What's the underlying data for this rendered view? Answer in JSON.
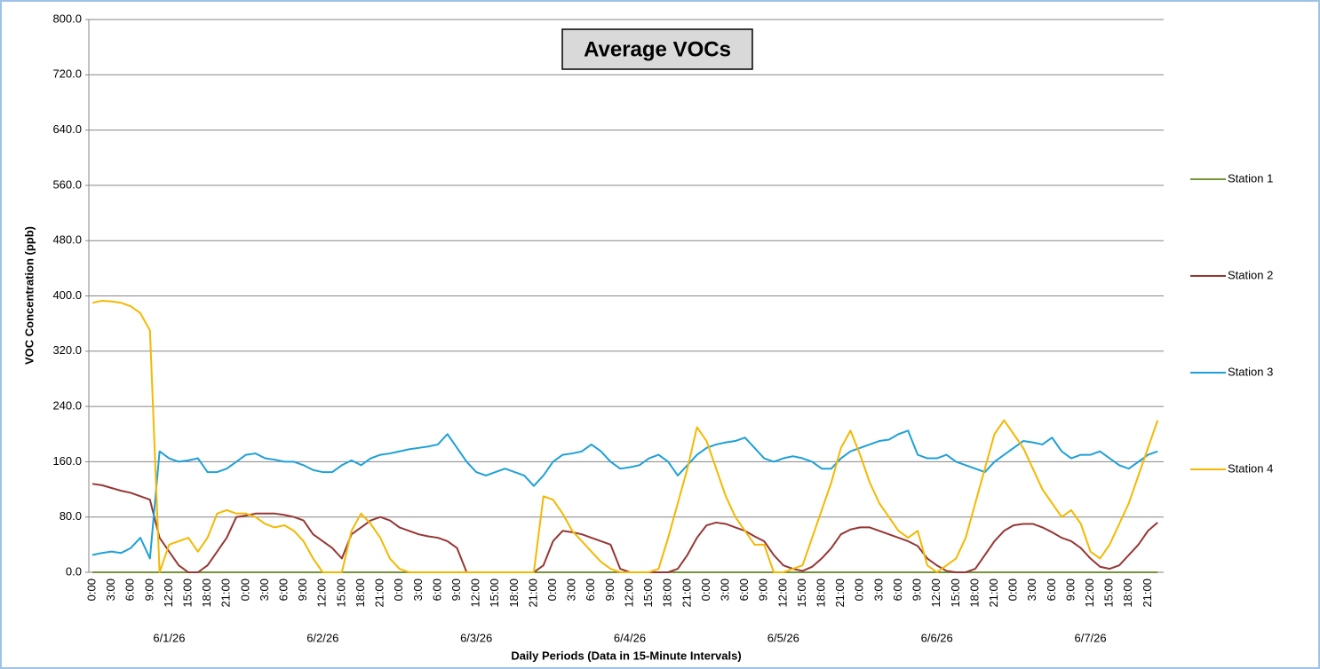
{
  "chart_data": {
    "type": "line",
    "title": "Average VOCs",
    "x_label": "Daily Periods (Data in 15-Minute Intervals)",
    "y_label": "VOC Concentration (ppb)",
    "categories": [
      "0:00",
      null,
      "3:00",
      null,
      "6:00",
      null,
      "9:00",
      null,
      "12:00",
      null,
      "15:00",
      null,
      "18:00",
      null,
      "21:00",
      null,
      "0:00",
      null,
      "3:00",
      null,
      "6:00",
      null,
      "9:00",
      null,
      "12:00",
      null,
      "15:00",
      null,
      "18:00",
      null,
      "21:00",
      null,
      "0:00",
      null,
      "3:00",
      null,
      "6:00",
      null,
      "9:00",
      null,
      "12:00",
      null,
      "15:00",
      null,
      "18:00",
      null,
      "21:00",
      null,
      "0:00",
      null,
      "3:00",
      null,
      "6:00",
      null,
      "9:00",
      null,
      "12:00",
      null,
      "15:00",
      null,
      "18:00",
      null,
      "21:00",
      null,
      "0:00",
      null,
      "3:00",
      null,
      "6:00",
      null,
      "9:00",
      null,
      "12:00",
      null,
      "15:00",
      null,
      "18:00",
      null,
      "21:00",
      null,
      "0:00",
      null,
      "3:00",
      null,
      "6:00",
      null,
      "9:00",
      null,
      "12:00",
      null,
      "15:00",
      null,
      "18:00",
      null,
      "21:00",
      null,
      "0:00",
      null,
      "3:00",
      null,
      "6:00",
      null,
      "9:00",
      null,
      "12:00",
      null,
      "15:00",
      null,
      "18:00",
      null,
      "21:00",
      null
    ],
    "dates": [
      "6/1/26",
      "6/2/26",
      "6/3/26",
      "6/4/26",
      "6/5/26",
      "6/6/26",
      "6/7/26"
    ],
    "ylim": [
      0,
      800
    ],
    "yticks": [
      {
        "value": 0,
        "label": "0.0"
      },
      {
        "value": 80,
        "label": "80.0"
      },
      {
        "value": 160,
        "label": "160.0"
      },
      {
        "value": 240,
        "label": "240.0"
      },
      {
        "value": 320,
        "label": "320.0"
      },
      {
        "value": 400,
        "label": "400.0"
      },
      {
        "value": 480,
        "label": "480.0"
      },
      {
        "value": 560,
        "label": "560.0"
      },
      {
        "value": 640,
        "label": "640.0"
      },
      {
        "value": 720,
        "label": "720.0"
      },
      {
        "value": 800,
        "label": "800.0"
      }
    ],
    "grid": true,
    "legend": "right",
    "series": [
      {
        "name": "Station 1",
        "color": "#77933c",
        "values": [
          0,
          0,
          0,
          0,
          0,
          0,
          0,
          0,
          0,
          0,
          0,
          0,
          0,
          0,
          0,
          0,
          0,
          0,
          0,
          0,
          0,
          0,
          0,
          0,
          0,
          0,
          0,
          0,
          0,
          0,
          0,
          0,
          0,
          0,
          0,
          0,
          0,
          0,
          0,
          0,
          0,
          0,
          0,
          0,
          0,
          0,
          0,
          0,
          0,
          0,
          0,
          0,
          0,
          0,
          0,
          0,
          0,
          0,
          0,
          0,
          0,
          0,
          0,
          0,
          0,
          0,
          0,
          0,
          0,
          0,
          0,
          0,
          0,
          0,
          0,
          0,
          0,
          0,
          0,
          0,
          0,
          0,
          0,
          0,
          0,
          0,
          0,
          0,
          0,
          0,
          0,
          0,
          0,
          0,
          0,
          0,
          0,
          0,
          0,
          0,
          0,
          0,
          0,
          0,
          0,
          0,
          0,
          0,
          0,
          0,
          0,
          0
        ]
      },
      {
        "name": "Station 2",
        "color": "#953735",
        "values": [
          128,
          126,
          122,
          118,
          115,
          110,
          105,
          50,
          30,
          10,
          0,
          0,
          10,
          30,
          50,
          80,
          82,
          85,
          85,
          85,
          83,
          80,
          75,
          55,
          45,
          35,
          20,
          55,
          65,
          75,
          80,
          75,
          65,
          60,
          55,
          52,
          50,
          45,
          35,
          0,
          0,
          0,
          0,
          0,
          0,
          0,
          0,
          10,
          45,
          60,
          58,
          55,
          50,
          45,
          40,
          5,
          0,
          0,
          0,
          0,
          0,
          5,
          25,
          50,
          68,
          72,
          70,
          65,
          60,
          52,
          45,
          25,
          10,
          5,
          2,
          8,
          20,
          35,
          55,
          62,
          65,
          65,
          60,
          55,
          50,
          45,
          38,
          20,
          10,
          2,
          0,
          0,
          5,
          25,
          45,
          60,
          68,
          70,
          70,
          65,
          58,
          50,
          45,
          35,
          20,
          8,
          5,
          10,
          25,
          40,
          60,
          72
        ]
      },
      {
        "name": "Station 3",
        "color": "#1ea0d8",
        "values": [
          25,
          28,
          30,
          28,
          35,
          50,
          20,
          175,
          165,
          160,
          162,
          165,
          145,
          145,
          150,
          160,
          170,
          172,
          165,
          163,
          160,
          160,
          155,
          148,
          145,
          145,
          155,
          162,
          155,
          165,
          170,
          172,
          175,
          178,
          180,
          182,
          185,
          200,
          180,
          160,
          145,
          140,
          145,
          150,
          145,
          140,
          125,
          140,
          160,
          170,
          172,
          175,
          185,
          175,
          160,
          150,
          152,
          155,
          165,
          170,
          160,
          140,
          155,
          170,
          180,
          185,
          188,
          190,
          195,
          180,
          165,
          160,
          165,
          168,
          165,
          160,
          150,
          150,
          165,
          175,
          180,
          185,
          190,
          192,
          200,
          205,
          170,
          165,
          165,
          170,
          160,
          155,
          150,
          145,
          160,
          170,
          180,
          190,
          188,
          185,
          195,
          175,
          165,
          170,
          170,
          175,
          165,
          155,
          150,
          160,
          170,
          175
        ]
      },
      {
        "name": "Station 4",
        "color": "#f5b800",
        "values": [
          390,
          393,
          392,
          390,
          385,
          375,
          350,
          0,
          40,
          45,
          50,
          30,
          50,
          85,
          90,
          85,
          85,
          80,
          70,
          65,
          68,
          60,
          45,
          20,
          0,
          0,
          0,
          60,
          85,
          70,
          50,
          20,
          5,
          0,
          0,
          0,
          0,
          0,
          0,
          0,
          0,
          0,
          0,
          0,
          0,
          0,
          0,
          110,
          105,
          85,
          60,
          45,
          30,
          15,
          5,
          0,
          0,
          0,
          0,
          5,
          50,
          100,
          150,
          210,
          190,
          150,
          110,
          80,
          60,
          40,
          40,
          0,
          0,
          5,
          10,
          50,
          90,
          130,
          180,
          205,
          170,
          130,
          100,
          80,
          60,
          50,
          60,
          10,
          0,
          10,
          20,
          50,
          100,
          150,
          200,
          220,
          200,
          180,
          150,
          120,
          100,
          80,
          90,
          70,
          30,
          20,
          40,
          70,
          100,
          140,
          180,
          220
        ]
      }
    ]
  }
}
